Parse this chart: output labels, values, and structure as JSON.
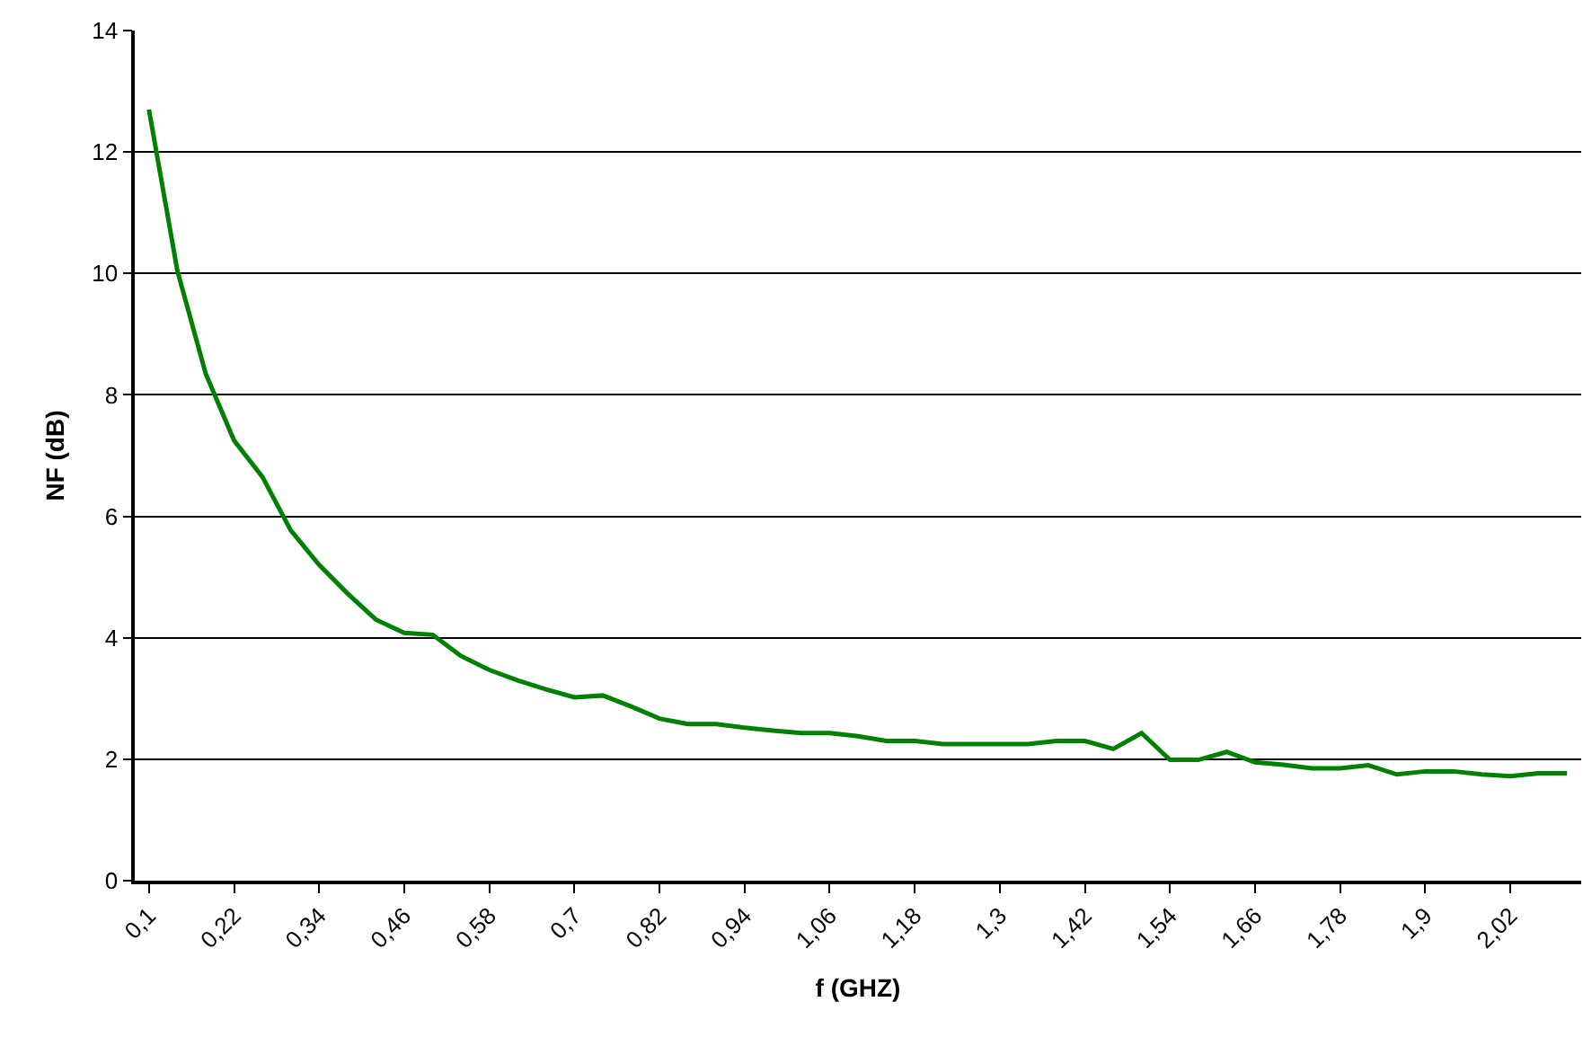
{
  "chart_data": {
    "type": "line",
    "xlabel": "f (GHZ)",
    "ylabel": "NF (dB)",
    "categories": [
      "0,1",
      null,
      null,
      "0,22",
      null,
      null,
      "0,34",
      null,
      null,
      "0,46",
      null,
      null,
      "0,58",
      null,
      null,
      "0,7",
      null,
      null,
      "0,82",
      null,
      null,
      "0,94",
      null,
      null,
      "1,06",
      null,
      null,
      "1,18",
      null,
      null,
      "1,3",
      null,
      null,
      "1,42",
      null,
      null,
      "1,54",
      null,
      null,
      "1,66",
      null,
      null,
      "1,78",
      null,
      null,
      "1,9",
      null,
      null,
      "2,02",
      null,
      null
    ],
    "series": [
      {
        "color": "#008000",
        "values": [
          12.7,
          10.05,
          8.35,
          7.25,
          6.65,
          5.77,
          5.2,
          4.73,
          4.3,
          4.08,
          4.05,
          3.7,
          3.47,
          3.3,
          3.15,
          3.02,
          3.05,
          2.87,
          2.67,
          2.58,
          2.58,
          2.52,
          2.47,
          2.43,
          2.43,
          2.38,
          2.3,
          2.3,
          2.25,
          2.25,
          2.25,
          2.25,
          2.3,
          2.3,
          2.17,
          2.43,
          1.99,
          1.99,
          2.12,
          1.95,
          1.91,
          1.85,
          1.85,
          1.9,
          1.75,
          1.8,
          1.8,
          1.75,
          1.72,
          1.77,
          1.77
        ]
      }
    ],
    "ylim": [
      0,
      14
    ],
    "yticks": [
      0,
      2,
      4,
      6,
      8,
      10,
      12,
      14
    ],
    "grid": "y",
    "legend": false,
    "marker": "none",
    "line_style": "solid"
  }
}
